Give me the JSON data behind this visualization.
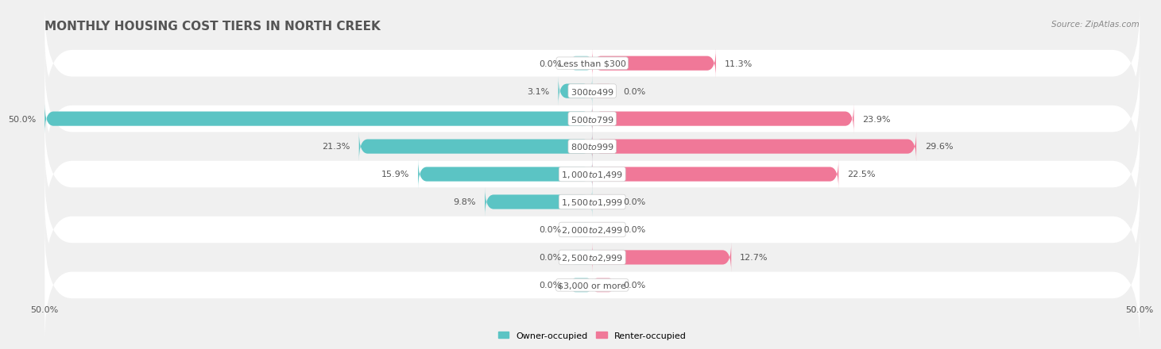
{
  "title": "MONTHLY HOUSING COST TIERS IN NORTH CREEK",
  "source": "Source: ZipAtlas.com",
  "categories": [
    "Less than $300",
    "$300 to $499",
    "$500 to $799",
    "$800 to $999",
    "$1,000 to $1,499",
    "$1,500 to $1,999",
    "$2,000 to $2,499",
    "$2,500 to $2,999",
    "$3,000 or more"
  ],
  "owner_values": [
    0.0,
    3.1,
    50.0,
    21.3,
    15.9,
    9.8,
    0.0,
    0.0,
    0.0
  ],
  "renter_values": [
    11.3,
    0.0,
    23.9,
    29.6,
    22.5,
    0.0,
    0.0,
    12.7,
    0.0
  ],
  "owner_color": "#5bc4c4",
  "renter_color": "#f07898",
  "owner_stub_color": "#a8dede",
  "renter_stub_color": "#f5b8c8",
  "max_value": 50.0,
  "bar_height": 0.52,
  "stub_size": 2.0,
  "background_color": "#f0f0f0",
  "row_even_color": "#ffffff",
  "row_odd_color": "#f0f0f0",
  "axis_min": -50.0,
  "axis_max": 50.0,
  "legend_labels": [
    "Owner-occupied",
    "Renter-occupied"
  ],
  "x_tick_labels": [
    "50.0%",
    "50.0%"
  ],
  "title_fontsize": 11,
  "label_fontsize": 8,
  "category_fontsize": 8,
  "source_fontsize": 7.5,
  "value_color": "#555555",
  "title_color": "#555555",
  "category_color": "#555555"
}
